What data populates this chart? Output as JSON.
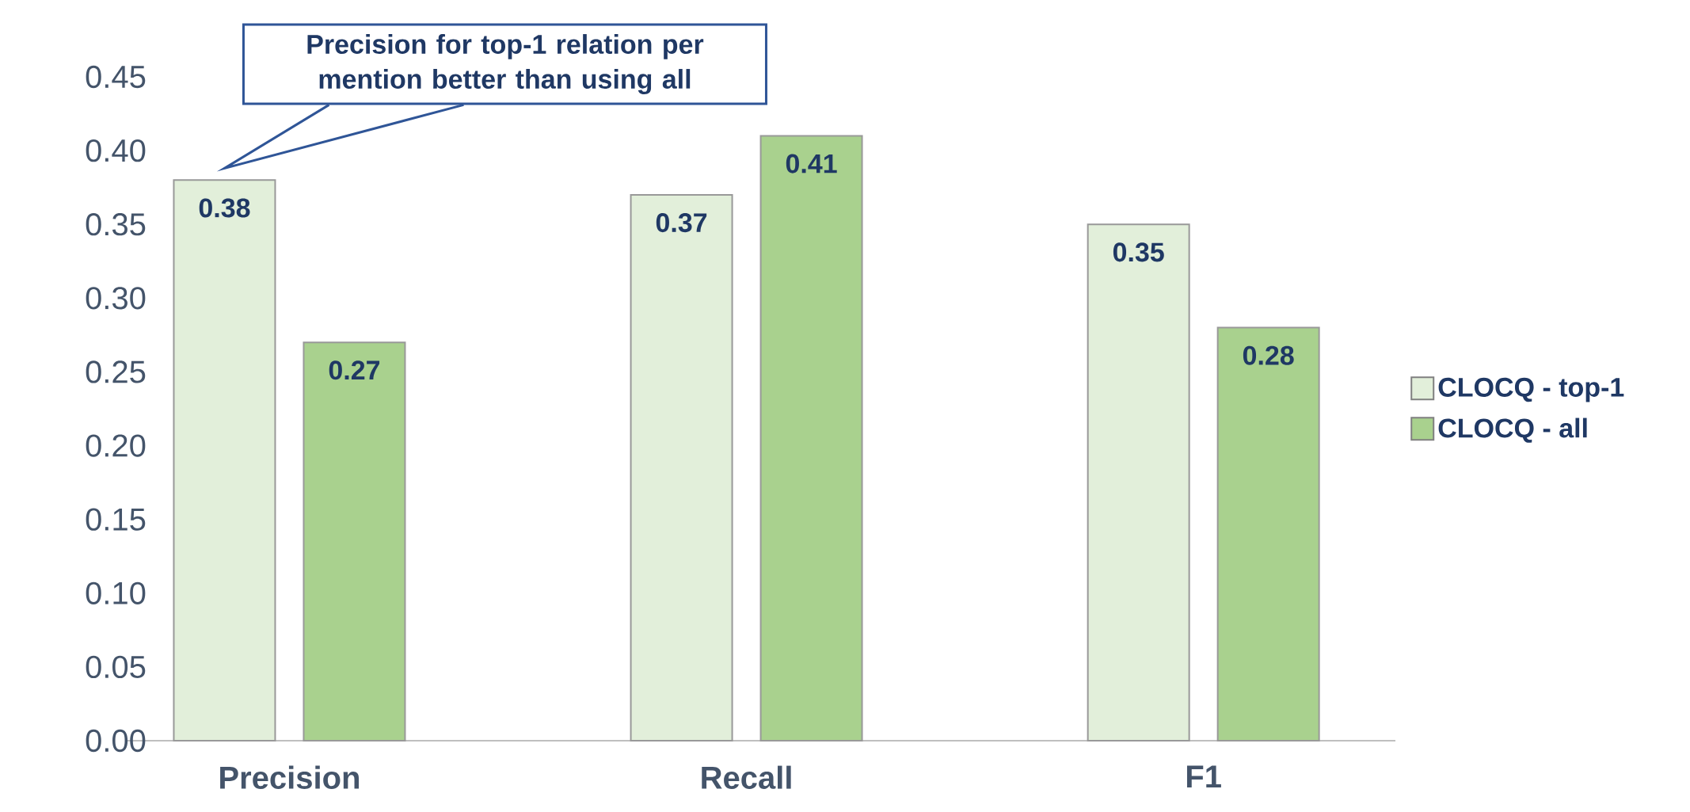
{
  "chart_data": {
    "type": "bar",
    "categories": [
      "Precision",
      "Recall",
      "F1"
    ],
    "series": [
      {
        "name": "CLOCQ - top-1",
        "color": "#e2efda",
        "values": [
          0.38,
          0.37,
          0.35
        ]
      },
      {
        "name": "CLOCQ - all",
        "color": "#a9d18e",
        "values": [
          0.27,
          0.41,
          0.28
        ]
      }
    ],
    "ylim": [
      0,
      0.45
    ],
    "yticks": [
      {
        "value": 0,
        "label": "0.00"
      },
      {
        "value": 0.05,
        "label": "0.05"
      },
      {
        "value": 0.1,
        "label": "0.10"
      },
      {
        "value": 0.15,
        "label": "0.15"
      },
      {
        "value": 0.2,
        "label": "0.20"
      },
      {
        "value": 0.25,
        "label": "0.25"
      },
      {
        "value": 0.3,
        "label": "0.30"
      },
      {
        "value": 0.35,
        "label": "0.35"
      },
      {
        "value": 0.4,
        "label": "0.40"
      },
      {
        "value": 0.45,
        "label": "0.45"
      }
    ],
    "data_labels": true,
    "grid": false,
    "legend": "right",
    "annotations": [
      "Precision for top-1 relation per mention better than using all"
    ]
  }
}
